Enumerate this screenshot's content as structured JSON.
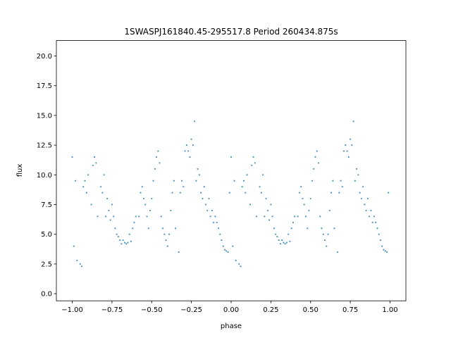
{
  "chart_data": {
    "type": "scatter",
    "title": "1SWASPJ161840.45-295517.8 Period 260434.875s",
    "xlabel": "phase",
    "ylabel": "flux",
    "xlim": [
      -1.1,
      1.1
    ],
    "ylim": [
      -0.6,
      21.3
    ],
    "xticks": [
      -1.0,
      -0.75,
      -0.5,
      -0.25,
      0.0,
      0.25,
      0.5,
      0.75,
      1.0
    ],
    "xtick_labels": [
      "−1.00",
      "−0.75",
      "−0.50",
      "−0.25",
      "0.00",
      "0.25",
      "0.50",
      "0.75",
      "1.00"
    ],
    "yticks": [
      0.0,
      2.5,
      5.0,
      7.5,
      10.0,
      12.5,
      15.0,
      17.5,
      20.0
    ],
    "ytick_labels": [
      "0.0",
      "2.5",
      "5.0",
      "7.5",
      "10.0",
      "12.5",
      "15.0",
      "17.5",
      "20.0"
    ],
    "grid": false,
    "point_color": "#1f77b4",
    "period_repeat": true,
    "series": [
      {
        "x": [
          -1.0,
          -0.99,
          -0.98,
          -0.97,
          -0.95,
          -0.94,
          -0.93,
          -0.92,
          -0.91,
          -0.9,
          -0.88,
          -0.87,
          -0.86,
          -0.85,
          -0.84,
          -0.82,
          -0.81,
          -0.8,
          -0.79,
          -0.78,
          -0.77,
          -0.76,
          -0.75,
          -0.74,
          -0.73,
          -0.72,
          -0.71,
          -0.7,
          -0.69,
          -0.68,
          -0.67,
          -0.66,
          -0.65,
          -0.64,
          -0.63,
          -0.62,
          -0.61,
          -0.6,
          -0.58,
          -0.57,
          -0.56,
          -0.55,
          -0.54,
          -0.53,
          -0.52,
          -0.51,
          -0.5,
          -0.49,
          -0.48,
          -0.47,
          -0.46,
          -0.45,
          -0.44,
          -0.43,
          -0.42,
          -0.41,
          -0.4,
          -0.39,
          -0.38,
          -0.37,
          -0.36,
          -0.35,
          -0.33,
          -0.32,
          -0.31,
          -0.3,
          -0.29,
          -0.28,
          -0.27,
          -0.26,
          -0.25,
          -0.24,
          -0.23,
          -0.22,
          -0.21,
          -0.2,
          -0.19,
          -0.18,
          -0.17,
          -0.16,
          -0.15,
          -0.14,
          -0.13,
          -0.12,
          -0.11,
          -0.1,
          -0.09,
          -0.08,
          -0.07,
          -0.06,
          -0.05,
          -0.04,
          -0.03,
          -0.02,
          -0.01
        ],
        "y": [
          11.5,
          4.0,
          9.5,
          2.8,
          2.5,
          2.3,
          9.0,
          9.5,
          8.5,
          10.0,
          7.5,
          10.8,
          11.5,
          11.0,
          6.5,
          9.0,
          8.5,
          10.0,
          6.5,
          8.0,
          7.0,
          6.2,
          7.5,
          6.5,
          5.5,
          5.0,
          4.8,
          4.5,
          4.2,
          4.5,
          4.3,
          4.2,
          4.3,
          5.0,
          4.4,
          5.5,
          6.0,
          6.5,
          6.5,
          8.5,
          9.0,
          8.0,
          7.5,
          6.5,
          5.5,
          7.0,
          8.0,
          9.5,
          10.5,
          11.5,
          12.0,
          11.0,
          6.5,
          5.5,
          5.0,
          4.5,
          4.0,
          5.0,
          7.0,
          8.5,
          9.5,
          5.5,
          3.5,
          8.5,
          9.5,
          9.0,
          12.0,
          12.5,
          12.0,
          11.5,
          13.0,
          12.5,
          14.5,
          9.5,
          10.5,
          10.0,
          8.5,
          8.0,
          9.0,
          7.5,
          7.0,
          8.0,
          6.5,
          7.0,
          6.0,
          6.5,
          6.0,
          5.5,
          5.0,
          4.5,
          4.0,
          3.7,
          3.6,
          3.5,
          8.5
        ]
      }
    ]
  }
}
